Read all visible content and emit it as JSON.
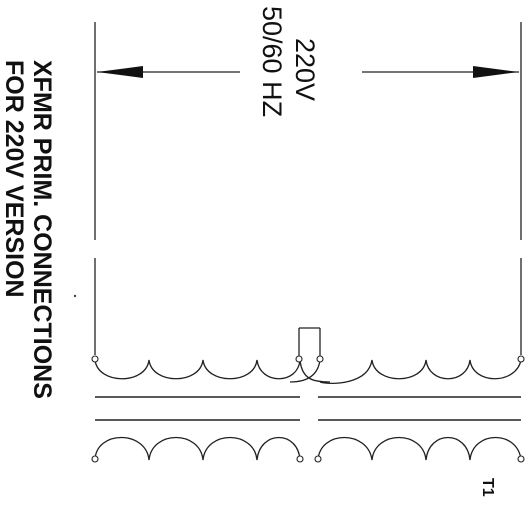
{
  "title": {
    "line1": "XFMR PRIM. CONNECTIONS",
    "line2": "FOR 220V VERSION"
  },
  "voltage": {
    "value": "220V",
    "frequency": "50/60 HZ"
  },
  "component_ref": "T1"
}
